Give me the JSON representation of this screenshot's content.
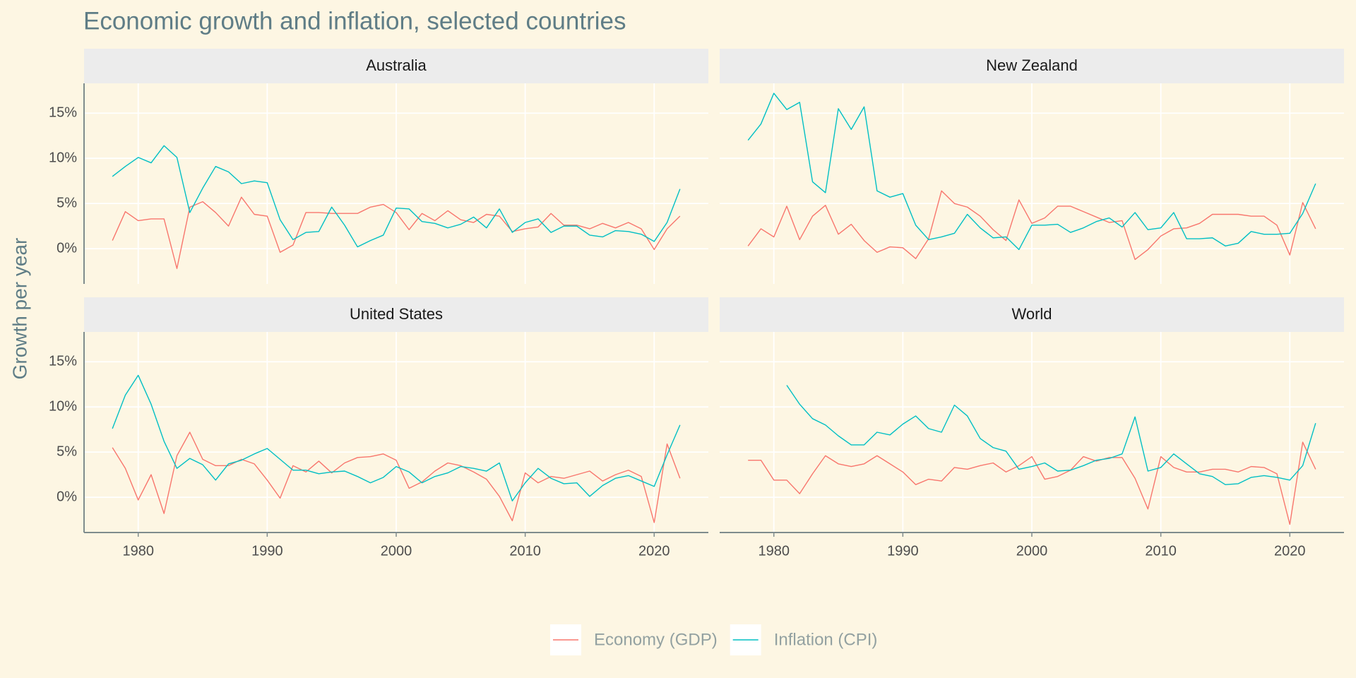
{
  "title": "Economic growth and inflation, selected countries",
  "y_label": "Growth per year",
  "chart_data": [
    {
      "type": "line",
      "title": "Australia",
      "x": [
        1978,
        1979,
        1980,
        1981,
        1982,
        1983,
        1984,
        1985,
        1986,
        1987,
        1988,
        1989,
        1990,
        1991,
        1992,
        1993,
        1994,
        1995,
        1996,
        1997,
        1998,
        1999,
        2000,
        2001,
        2002,
        2003,
        2004,
        2005,
        2006,
        2007,
        2008,
        2009,
        2010,
        2011,
        2012,
        2013,
        2014,
        2015,
        2016,
        2017,
        2018,
        2019,
        2020,
        2021,
        2022
      ],
      "series": [
        {
          "name": "Economy (GDP)",
          "color": "#F8766D",
          "values": [
            0.9,
            4.1,
            3.1,
            3.3,
            3.3,
            -2.2,
            4.6,
            5.2,
            4.0,
            2.5,
            5.7,
            3.8,
            3.6,
            -0.4,
            0.4,
            4.0,
            4.0,
            3.9,
            3.9,
            3.9,
            4.6,
            4.9,
            4.0,
            2.1,
            3.9,
            3.1,
            4.2,
            3.2,
            2.9,
            3.8,
            3.6,
            1.9,
            2.2,
            2.4,
            3.9,
            2.6,
            2.6,
            2.2,
            2.8,
            2.3,
            2.9,
            2.2,
            -0.1,
            2.2,
            3.6
          ]
        },
        {
          "name": "Inflation (CPI)",
          "color": "#00BFC4",
          "values": [
            8.0,
            9.1,
            10.1,
            9.5,
            11.4,
            10.1,
            4.0,
            6.7,
            9.1,
            8.5,
            7.2,
            7.5,
            7.3,
            3.2,
            1.0,
            1.8,
            1.9,
            4.6,
            2.6,
            0.2,
            0.9,
            1.5,
            4.5,
            4.4,
            3.0,
            2.8,
            2.3,
            2.7,
            3.5,
            2.3,
            4.4,
            1.8,
            2.9,
            3.3,
            1.8,
            2.5,
            2.5,
            1.5,
            1.3,
            2.0,
            1.9,
            1.6,
            0.8,
            2.9,
            6.6
          ]
        }
      ],
      "xlim": [
        1975.8,
        2024.2
      ],
      "ylim": [
        -3.9,
        18.3
      ],
      "xticks": [
        1980,
        1990,
        2000,
        2010,
        2020
      ],
      "yticks": [
        {
          "value": 0,
          "label": "0%"
        },
        {
          "value": 5,
          "label": "5%"
        },
        {
          "value": 10,
          "label": "10%"
        },
        {
          "value": 15,
          "label": "15%"
        }
      ]
    },
    {
      "type": "line",
      "title": "New Zealand",
      "x": [
        1978,
        1979,
        1980,
        1981,
        1982,
        1983,
        1984,
        1985,
        1986,
        1987,
        1988,
        1989,
        1990,
        1991,
        1992,
        1993,
        1994,
        1995,
        1996,
        1997,
        1998,
        1999,
        2000,
        2001,
        2002,
        2003,
        2004,
        2005,
        2006,
        2007,
        2008,
        2009,
        2010,
        2011,
        2012,
        2013,
        2014,
        2015,
        2016,
        2017,
        2018,
        2019,
        2020,
        2021,
        2022
      ],
      "series": [
        {
          "name": "Economy (GDP)",
          "color": "#F8766D",
          "values": [
            0.3,
            2.2,
            1.3,
            4.7,
            1.0,
            3.6,
            4.8,
            1.6,
            2.7,
            0.9,
            -0.4,
            0.2,
            0.1,
            -1.1,
            1.1,
            6.4,
            5.0,
            4.6,
            3.6,
            2.1,
            0.9,
            5.4,
            2.8,
            3.4,
            4.7,
            4.7,
            4.1,
            3.5,
            2.9,
            3.1,
            -1.2,
            -0.1,
            1.4,
            2.2,
            2.3,
            2.8,
            3.8,
            3.8,
            3.8,
            3.6,
            3.6,
            2.6,
            -0.7,
            5.1,
            2.2
          ]
        },
        {
          "name": "Inflation (CPI)",
          "color": "#00BFC4",
          "values": [
            12.0,
            13.8,
            17.2,
            15.4,
            16.2,
            7.4,
            6.2,
            15.5,
            13.2,
            15.7,
            6.4,
            5.7,
            6.1,
            2.6,
            1.0,
            1.3,
            1.7,
            3.8,
            2.3,
            1.2,
            1.3,
            -0.1,
            2.6,
            2.6,
            2.7,
            1.8,
            2.3,
            3.0,
            3.4,
            2.4,
            4.0,
            2.1,
            2.3,
            4.0,
            1.1,
            1.1,
            1.2,
            0.3,
            0.6,
            1.9,
            1.6,
            1.6,
            1.7,
            3.9,
            7.2
          ]
        }
      ],
      "xlim": [
        1975.8,
        2024.2
      ],
      "ylim": [
        -3.9,
        18.3
      ],
      "xticks": [
        1980,
        1990,
        2000,
        2010,
        2020
      ],
      "yticks": [
        0,
        5,
        10,
        15
      ]
    },
    {
      "type": "line",
      "title": "United States",
      "x": [
        1978,
        1979,
        1980,
        1981,
        1982,
        1983,
        1984,
        1985,
        1986,
        1987,
        1988,
        1989,
        1990,
        1991,
        1992,
        1993,
        1994,
        1995,
        1996,
        1997,
        1998,
        1999,
        2000,
        2001,
        2002,
        2003,
        2004,
        2005,
        2006,
        2007,
        2008,
        2009,
        2010,
        2011,
        2012,
        2013,
        2014,
        2015,
        2016,
        2017,
        2018,
        2019,
        2020,
        2021,
        2022
      ],
      "series": [
        {
          "name": "Economy (GDP)",
          "color": "#F8766D",
          "values": [
            5.5,
            3.2,
            -0.3,
            2.5,
            -1.8,
            4.6,
            7.2,
            4.2,
            3.5,
            3.5,
            4.2,
            3.7,
            1.9,
            -0.1,
            3.5,
            2.8,
            4.0,
            2.7,
            3.8,
            4.4,
            4.5,
            4.8,
            4.1,
            1.0,
            1.7,
            2.9,
            3.8,
            3.5,
            2.8,
            2.0,
            0.1,
            -2.6,
            2.7,
            1.6,
            2.3,
            2.1,
            2.5,
            2.9,
            1.8,
            2.5,
            3.0,
            2.3,
            -2.8,
            5.9,
            2.1
          ]
        },
        {
          "name": "Inflation (CPI)",
          "color": "#00BFC4",
          "values": [
            7.6,
            11.3,
            13.5,
            10.3,
            6.2,
            3.2,
            4.3,
            3.6,
            1.9,
            3.7,
            4.1,
            4.8,
            5.4,
            4.2,
            3.0,
            3.0,
            2.6,
            2.8,
            2.9,
            2.3,
            1.6,
            2.2,
            3.4,
            2.8,
            1.6,
            2.3,
            2.7,
            3.4,
            3.2,
            2.9,
            3.8,
            -0.4,
            1.6,
            3.2,
            2.1,
            1.5,
            1.6,
            0.1,
            1.3,
            2.1,
            2.4,
            1.8,
            1.2,
            4.7,
            8.0
          ]
        }
      ],
      "xlim": [
        1975.8,
        2024.2
      ],
      "ylim": [
        -3.9,
        18.3
      ],
      "xticks": [
        1980,
        1990,
        2000,
        2010,
        2020
      ],
      "yticks": [
        {
          "value": 0,
          "label": "0%"
        },
        {
          "value": 5,
          "label": "5%"
        },
        {
          "value": 10,
          "label": "10%"
        },
        {
          "value": 15,
          "label": "15%"
        }
      ]
    },
    {
      "type": "line",
      "title": "World",
      "x": [
        1978,
        1979,
        1980,
        1981,
        1982,
        1983,
        1984,
        1985,
        1986,
        1987,
        1988,
        1989,
        1990,
        1991,
        1992,
        1993,
        1994,
        1995,
        1996,
        1997,
        1998,
        1999,
        2000,
        2001,
        2002,
        2003,
        2004,
        2005,
        2006,
        2007,
        2008,
        2009,
        2010,
        2011,
        2012,
        2013,
        2014,
        2015,
        2016,
        2017,
        2018,
        2019,
        2020,
        2021,
        2022
      ],
      "series": [
        {
          "name": "Economy (GDP)",
          "color": "#F8766D",
          "values": [
            4.1,
            4.1,
            1.9,
            1.9,
            0.4,
            2.6,
            4.6,
            3.7,
            3.4,
            3.7,
            4.6,
            3.7,
            2.8,
            1.4,
            2.0,
            1.8,
            3.3,
            3.1,
            3.5,
            3.8,
            2.8,
            3.5,
            4.5,
            2.0,
            2.3,
            3.0,
            4.5,
            4.0,
            4.4,
            4.4,
            2.1,
            -1.3,
            4.5,
            3.3,
            2.8,
            2.8,
            3.1,
            3.1,
            2.8,
            3.4,
            3.3,
            2.6,
            -3.0,
            6.1,
            3.1
          ]
        },
        {
          "name": "Inflation (CPI)",
          "color": "#00BFC4",
          "values": [
            null,
            null,
            null,
            12.4,
            10.3,
            8.7,
            8.0,
            6.8,
            5.8,
            5.8,
            7.2,
            6.9,
            8.1,
            9.0,
            7.6,
            7.2,
            10.2,
            9.0,
            6.5,
            5.5,
            5.1,
            3.1,
            3.4,
            3.8,
            2.9,
            3.0,
            3.5,
            4.1,
            4.3,
            4.8,
            8.9,
            2.9,
            3.3,
            4.8,
            3.7,
            2.6,
            2.3,
            1.4,
            1.5,
            2.2,
            2.4,
            2.2,
            1.9,
            3.5,
            8.2
          ]
        }
      ],
      "xlim": [
        1975.8,
        2024.2
      ],
      "ylim": [
        -3.9,
        18.3
      ],
      "xticks": [
        1980,
        1990,
        2000,
        2010,
        2020
      ],
      "yticks": [
        0,
        5,
        10,
        15
      ]
    }
  ]
}
